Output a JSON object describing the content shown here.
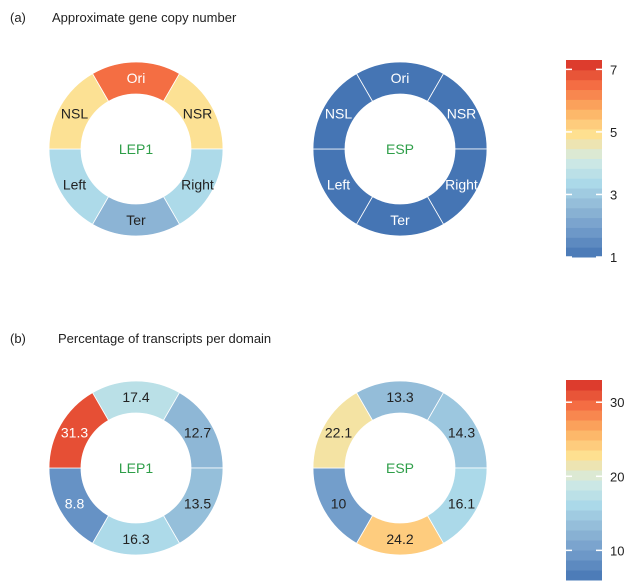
{
  "chart_data": [
    {
      "type": "donut",
      "panel": "(a)",
      "title": "Approximate gene copy number",
      "segment_order": [
        "Ori",
        "NSR",
        "Right",
        "Ter",
        "Left",
        "NSL"
      ],
      "rings": [
        {
          "center_label": "LEP1",
          "segments": [
            {
              "label": "Ori",
              "value": 6.5
            },
            {
              "label": "NSR",
              "value": 4.9
            },
            {
              "label": "Right",
              "value": 3.4
            },
            {
              "label": "Ter",
              "value": 2.5
            },
            {
              "label": "Left",
              "value": 3.4
            },
            {
              "label": "NSL",
              "value": 4.9
            }
          ]
        },
        {
          "center_label": "ESP",
          "segments": [
            {
              "label": "Ori",
              "value": 1
            },
            {
              "label": "NSR",
              "value": 1
            },
            {
              "label": "Right",
              "value": 1
            },
            {
              "label": "Ter",
              "value": 1
            },
            {
              "label": "Left",
              "value": 1
            },
            {
              "label": "NSL",
              "value": 1
            }
          ]
        }
      ],
      "colorbar": {
        "min": 1,
        "max": 7.3,
        "ticks": [
          "1",
          "3",
          "5",
          "7"
        ],
        "tick_values": [
          1,
          3,
          5,
          7
        ]
      }
    },
    {
      "type": "donut",
      "panel": "(b)",
      "title": "Percentage of transcripts per domain",
      "rings": [
        {
          "center_label": "LEP1",
          "segments": [
            {
              "label": "17.4",
              "value": 17.4
            },
            {
              "label": "12.7",
              "value": 12.7
            },
            {
              "label": "13.5",
              "value": 13.5
            },
            {
              "label": "16.3",
              "value": 16.3
            },
            {
              "label": "8.8",
              "value": 8.8
            },
            {
              "label": "31.3",
              "value": 31.3
            }
          ]
        },
        {
          "center_label": "ESP",
          "segments": [
            {
              "label": "13.3",
              "value": 13.3
            },
            {
              "label": "14.3",
              "value": 14.3
            },
            {
              "label": "16.1",
              "value": 16.1
            },
            {
              "label": "24.2",
              "value": 24.2
            },
            {
              "label": "10",
              "value": 10
            },
            {
              "label": "22.1",
              "value": 22.1
            }
          ]
        }
      ],
      "colorbar": {
        "min": 6,
        "max": 33,
        "ticks": [
          "10",
          "20",
          "30"
        ],
        "tick_values": [
          10,
          20,
          30
        ]
      }
    }
  ],
  "colors": {
    "palette": [
      "#4575b4",
      "#6d98c8",
      "#8fb7d6",
      "#abd9e9",
      "#d3ebe4",
      "#fee090",
      "#fdae61",
      "#f46d43",
      "#d73027"
    ],
    "center_text": "#2e9e48",
    "divider": "#ffffff"
  }
}
